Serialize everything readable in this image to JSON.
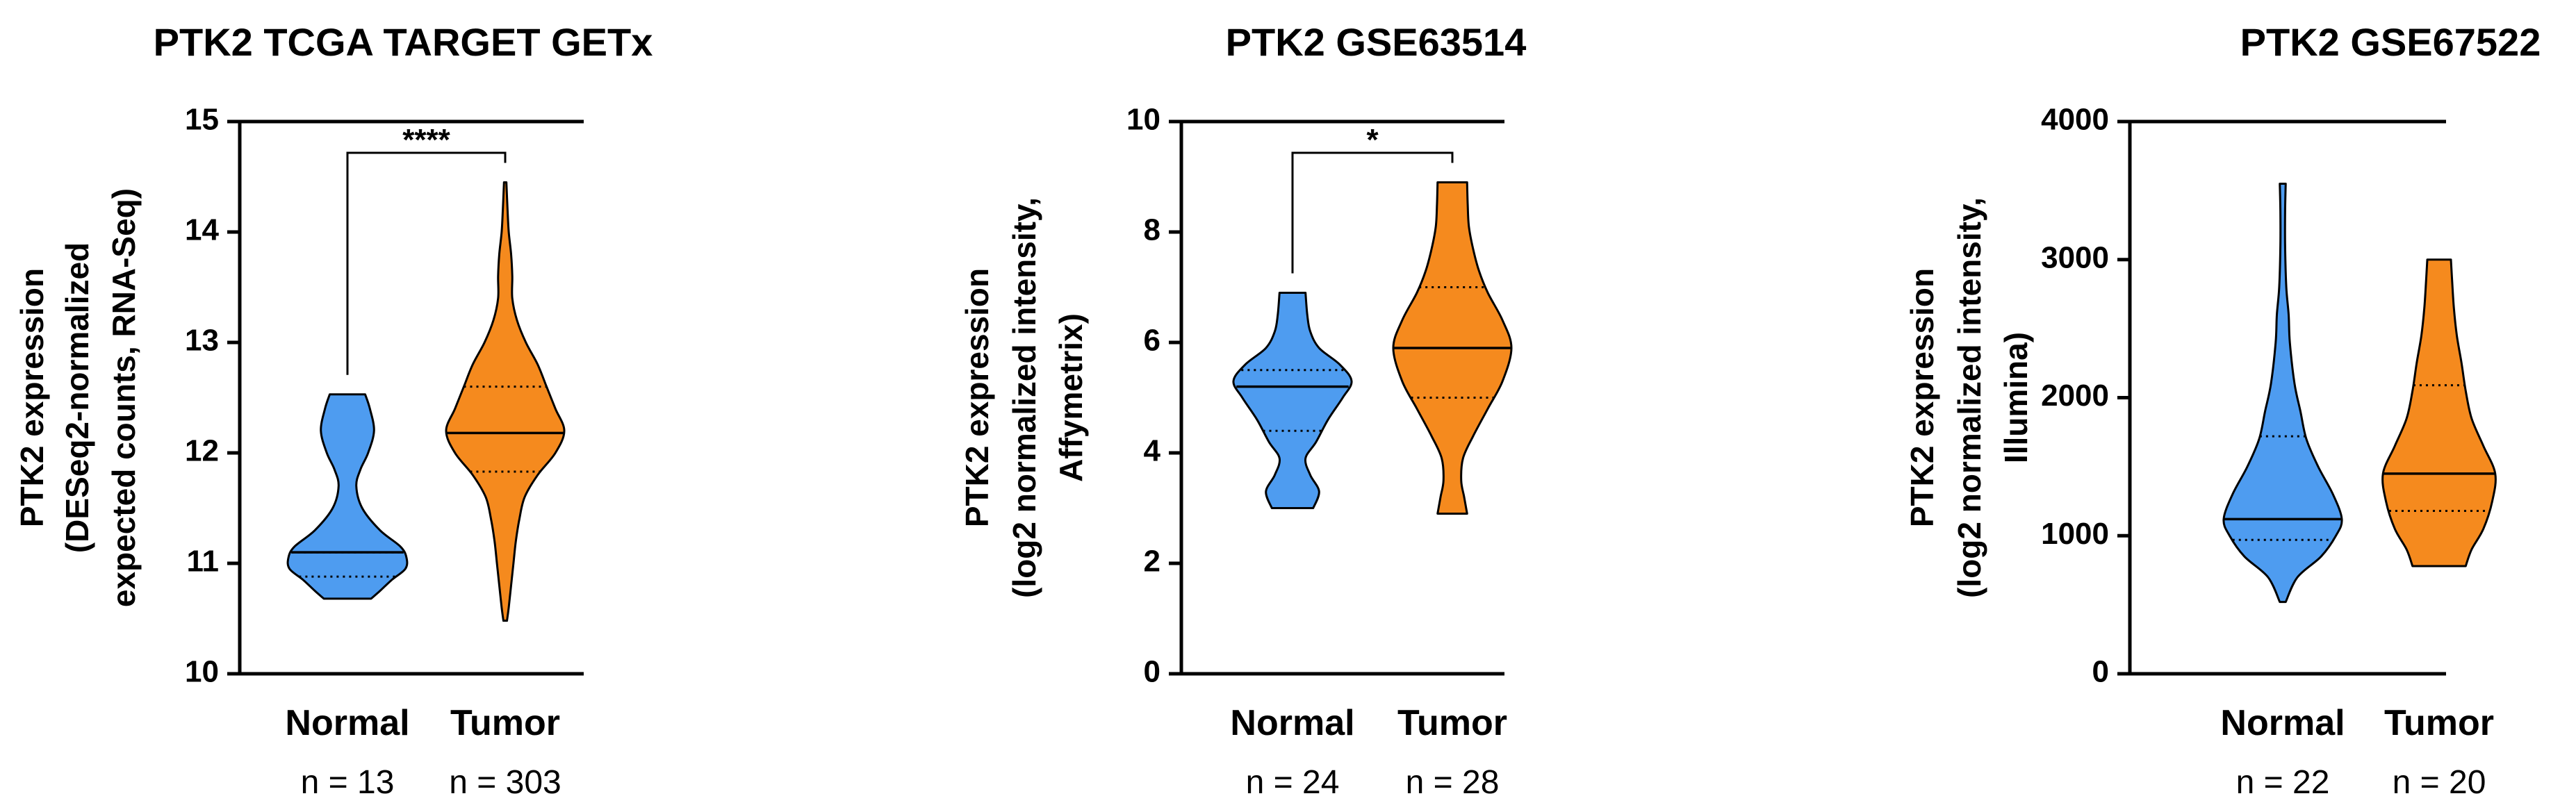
{
  "colors": {
    "normal": "#4e9cf0",
    "tumor": "#f58a1e",
    "stroke": "#000000"
  },
  "chart_data": [
    {
      "type": "violin",
      "title": "PTK2 TCGA TARGET GETx",
      "ylabel_lines": [
        "PTK2 expression",
        "(DESeq2-normalized",
        "expected counts, RNA-Seq)"
      ],
      "ylim": [
        10,
        15
      ],
      "yticks": [
        10,
        11,
        12,
        13,
        14,
        15
      ],
      "categories": [
        "Normal",
        "Tumor"
      ],
      "n_labels": [
        "n = 13",
        "n = 303"
      ],
      "significance": "****",
      "series": [
        {
          "category": "Normal",
          "color": "#4e9cf0",
          "min": 10.68,
          "max": 12.53,
          "median": 11.1,
          "q1": 10.88,
          "q3": 11.1,
          "profile": [
            [
              10.68,
              0.4
            ],
            [
              10.75,
              0.55
            ],
            [
              10.85,
              0.75
            ],
            [
              10.95,
              0.98
            ],
            [
              11.05,
              1.0
            ],
            [
              11.15,
              0.9
            ],
            [
              11.3,
              0.55
            ],
            [
              11.5,
              0.25
            ],
            [
              11.7,
              0.15
            ],
            [
              11.85,
              0.22
            ],
            [
              12.0,
              0.35
            ],
            [
              12.2,
              0.45
            ],
            [
              12.4,
              0.38
            ],
            [
              12.53,
              0.3
            ]
          ]
        },
        {
          "category": "Tumor",
          "color": "#f58a1e",
          "min": 10.48,
          "max": 14.45,
          "median": 12.18,
          "q1": 11.83,
          "q3": 12.6,
          "profile": [
            [
              10.48,
              0.03
            ],
            [
              10.6,
              0.06
            ],
            [
              10.8,
              0.1
            ],
            [
              11.0,
              0.14
            ],
            [
              11.2,
              0.18
            ],
            [
              11.4,
              0.24
            ],
            [
              11.6,
              0.33
            ],
            [
              11.8,
              0.55
            ],
            [
              12.0,
              0.85
            ],
            [
              12.2,
              1.0
            ],
            [
              12.4,
              0.85
            ],
            [
              12.6,
              0.7
            ],
            [
              12.8,
              0.55
            ],
            [
              13.0,
              0.35
            ],
            [
              13.2,
              0.2
            ],
            [
              13.4,
              0.12
            ],
            [
              13.6,
              0.12
            ],
            [
              13.8,
              0.1
            ],
            [
              14.0,
              0.06
            ],
            [
              14.2,
              0.04
            ],
            [
              14.45,
              0.02
            ]
          ]
        }
      ]
    },
    {
      "type": "violin",
      "title": "PTK2 GSE63514",
      "ylabel_lines": [
        "PTK2 expression",
        "(log2 normalized intensity,",
        "Affymetrix)"
      ],
      "ylim": [
        0,
        10
      ],
      "yticks": [
        0,
        2,
        4,
        6,
        8,
        10
      ],
      "categories": [
        "Normal",
        "Tumor"
      ],
      "n_labels": [
        "n = 24",
        "n = 28"
      ],
      "significance": "*",
      "series": [
        {
          "category": "Normal",
          "color": "#4e9cf0",
          "min": 3.0,
          "max": 6.9,
          "median": 5.2,
          "q1": 4.4,
          "q3": 5.5,
          "profile": [
            [
              3.0,
              0.35
            ],
            [
              3.3,
              0.45
            ],
            [
              3.6,
              0.3
            ],
            [
              3.9,
              0.22
            ],
            [
              4.2,
              0.4
            ],
            [
              4.6,
              0.6
            ],
            [
              5.0,
              0.85
            ],
            [
              5.3,
              1.0
            ],
            [
              5.6,
              0.8
            ],
            [
              5.9,
              0.45
            ],
            [
              6.2,
              0.3
            ],
            [
              6.5,
              0.25
            ],
            [
              6.9,
              0.22
            ]
          ]
        },
        {
          "category": "Tumor",
          "color": "#f58a1e",
          "min": 2.9,
          "max": 8.9,
          "median": 5.9,
          "q1": 5.0,
          "q3": 7.0,
          "profile": [
            [
              2.9,
              0.25
            ],
            [
              3.2,
              0.2
            ],
            [
              3.5,
              0.15
            ],
            [
              3.9,
              0.18
            ],
            [
              4.3,
              0.35
            ],
            [
              4.8,
              0.6
            ],
            [
              5.3,
              0.85
            ],
            [
              5.9,
              1.0
            ],
            [
              6.4,
              0.85
            ],
            [
              6.9,
              0.6
            ],
            [
              7.3,
              0.45
            ],
            [
              7.7,
              0.35
            ],
            [
              8.1,
              0.28
            ],
            [
              8.5,
              0.26
            ],
            [
              8.9,
              0.25
            ]
          ]
        }
      ]
    },
    {
      "type": "violin",
      "title": "PTK2 GSE67522",
      "ylabel_lines": [
        "PTK2 expression",
        "(log2 normalized intensity,",
        "Illumina)"
      ],
      "ylim": [
        0,
        4000
      ],
      "yticks": [
        0,
        1000,
        2000,
        3000,
        4000
      ],
      "categories": [
        "Normal",
        "Tumor"
      ],
      "n_labels": [
        "n = 22",
        "n = 20"
      ],
      "significance": "",
      "series": [
        {
          "category": "Normal",
          "color": "#4e9cf0",
          "min": 520,
          "max": 3550,
          "median": 1120,
          "q1": 970,
          "q3": 1720,
          "profile": [
            [
              520,
              0.05
            ],
            [
              700,
              0.25
            ],
            [
              850,
              0.65
            ],
            [
              1000,
              0.9
            ],
            [
              1120,
              1.0
            ],
            [
              1300,
              0.85
            ],
            [
              1500,
              0.6
            ],
            [
              1700,
              0.4
            ],
            [
              1900,
              0.3
            ],
            [
              2100,
              0.2
            ],
            [
              2400,
              0.12
            ],
            [
              2600,
              0.1
            ],
            [
              2800,
              0.06
            ],
            [
              3100,
              0.04
            ],
            [
              3350,
              0.04
            ],
            [
              3550,
              0.05
            ]
          ]
        },
        {
          "category": "Tumor",
          "color": "#f58a1e",
          "min": 780,
          "max": 3000,
          "median": 1450,
          "q1": 1180,
          "q3": 2090,
          "profile": [
            [
              780,
              0.45
            ],
            [
              900,
              0.55
            ],
            [
              1050,
              0.75
            ],
            [
              1250,
              0.9
            ],
            [
              1450,
              0.95
            ],
            [
              1650,
              0.75
            ],
            [
              1850,
              0.55
            ],
            [
              2050,
              0.45
            ],
            [
              2250,
              0.38
            ],
            [
              2450,
              0.3
            ],
            [
              2650,
              0.25
            ],
            [
              2850,
              0.22
            ],
            [
              3000,
              0.2
            ]
          ]
        }
      ]
    }
  ]
}
